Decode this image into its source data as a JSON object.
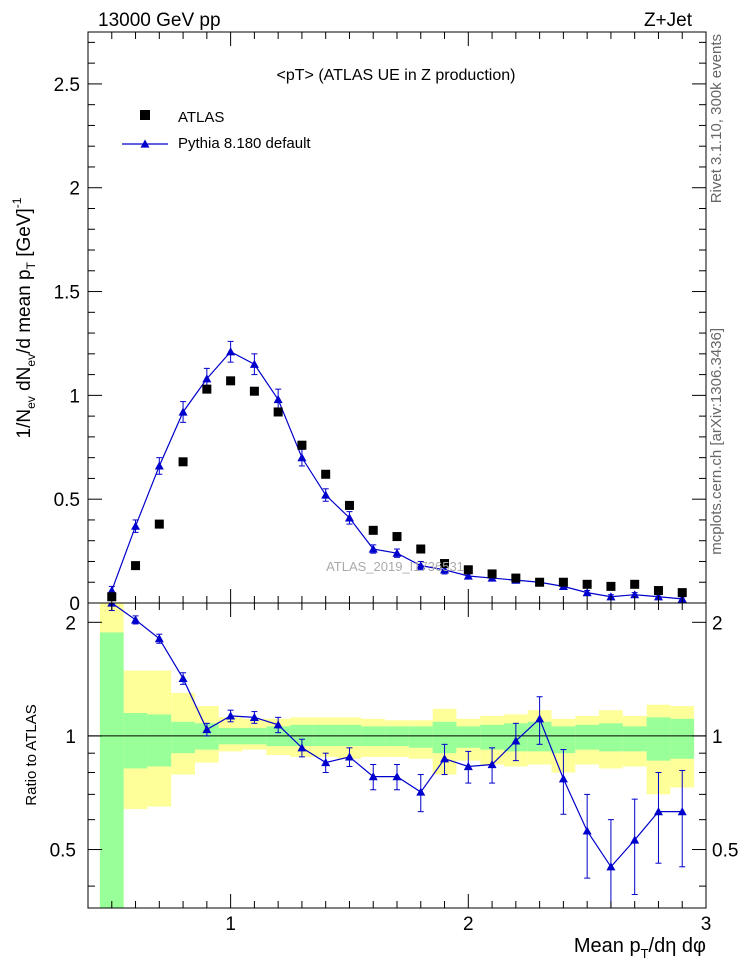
{
  "header": {
    "left": "13000 GeV pp",
    "right": "Z+Jet"
  },
  "plot_title": "<pT> (ATLAS UE in Z production)",
  "watermark": "ATLAS_2019_I1736531",
  "side_labels": {
    "top": "Rivet 3.1.10,  300k events",
    "bottom": "mcplots.cern.ch [arXiv:1306.3436]"
  },
  "chart_data": [
    {
      "type": "scatter",
      "name": "main",
      "ylabel": "1/N_ev dN_ev/d mean p_T [GeV]^-1",
      "xlim": [
        0.4,
        3.0
      ],
      "ylim": [
        0,
        2.75
      ],
      "yticks": [
        0,
        0.5,
        1,
        1.5,
        2,
        2.5
      ],
      "ytick_labels": [
        "0",
        "0.5",
        "1",
        "1.5",
        "2",
        "2.5"
      ],
      "x": [
        0.5,
        0.6,
        0.7,
        0.8,
        0.9,
        1.0,
        1.1,
        1.2,
        1.3,
        1.4,
        1.5,
        1.6,
        1.7,
        1.8,
        1.9,
        2.0,
        2.1,
        2.2,
        2.3,
        2.4,
        2.5,
        2.6,
        2.7,
        2.8,
        2.9
      ],
      "series": [
        {
          "name": "ATLAS",
          "marker": "square",
          "color": "#000000",
          "values": [
            0.03,
            0.18,
            0.38,
            0.68,
            1.03,
            1.07,
            1.02,
            0.92,
            0.76,
            0.62,
            0.47,
            0.35,
            0.32,
            0.26,
            0.19,
            0.16,
            0.14,
            0.12,
            0.1,
            0.1,
            0.09,
            0.08,
            0.09,
            0.06,
            0.05
          ]
        },
        {
          "name": "Pythia 8.180 default",
          "marker": "triangle",
          "color": "#0000cc",
          "values": [
            0.06,
            0.37,
            0.66,
            0.92,
            1.08,
            1.21,
            1.15,
            0.98,
            0.7,
            0.52,
            0.41,
            0.26,
            0.24,
            0.18,
            0.16,
            0.13,
            0.12,
            0.11,
            0.1,
            0.08,
            0.05,
            0.03,
            0.04,
            0.03,
            0.02
          ],
          "errors": [
            0.02,
            0.03,
            0.04,
            0.05,
            0.05,
            0.05,
            0.05,
            0.05,
            0.04,
            0.03,
            0.03,
            0.02,
            0.02,
            0.02,
            0.02,
            0.01,
            0.01,
            0.01,
            0.01,
            0.01,
            0.01,
            0.01,
            0.01,
            0.01,
            0.01
          ]
        }
      ],
      "legend": "top-left"
    },
    {
      "type": "scatter",
      "name": "ratio",
      "ylabel": "Ratio to ATLAS",
      "xlabel": "Mean p_T/dη dφ",
      "xlim": [
        0.4,
        3.0
      ],
      "ylim": [
        0.35,
        2.25
      ],
      "xticks": [
        1,
        2,
        3
      ],
      "xtick_labels": [
        "1",
        "2",
        "3"
      ],
      "yticks": [
        0.5,
        1,
        2
      ],
      "ytick_labels": [
        "0.5",
        "1",
        "2"
      ],
      "reference": 1,
      "bins": [
        [
          0.45,
          0.55
        ],
        [
          0.55,
          0.65
        ],
        [
          0.65,
          0.75
        ],
        [
          0.75,
          0.85
        ],
        [
          0.85,
          0.95
        ],
        [
          0.95,
          1.05
        ],
        [
          1.05,
          1.15
        ],
        [
          1.15,
          1.25
        ],
        [
          1.25,
          1.35
        ],
        [
          1.35,
          1.45
        ],
        [
          1.45,
          1.55
        ],
        [
          1.55,
          1.65
        ],
        [
          1.65,
          1.75
        ],
        [
          1.75,
          1.85
        ],
        [
          1.85,
          1.95
        ],
        [
          1.95,
          2.05
        ],
        [
          2.05,
          2.15
        ],
        [
          2.15,
          2.25
        ],
        [
          2.25,
          2.35
        ],
        [
          2.35,
          2.45
        ],
        [
          2.45,
          2.55
        ],
        [
          2.55,
          2.65
        ],
        [
          2.65,
          2.75
        ],
        [
          2.75,
          2.85
        ],
        [
          2.85,
          2.95
        ]
      ],
      "band_yellow": [
        [
          0.3,
          2.25
        ],
        [
          0.64,
          1.49
        ],
        [
          0.65,
          1.49
        ],
        [
          0.79,
          1.3
        ],
        [
          0.85,
          1.2
        ],
        [
          0.91,
          1.12
        ],
        [
          0.92,
          1.11
        ],
        [
          0.89,
          1.11
        ],
        [
          0.88,
          1.12
        ],
        [
          0.88,
          1.12
        ],
        [
          0.87,
          1.12
        ],
        [
          0.88,
          1.11
        ],
        [
          0.88,
          1.1
        ],
        [
          0.87,
          1.1
        ],
        [
          0.79,
          1.18
        ],
        [
          0.86,
          1.11
        ],
        [
          0.84,
          1.13
        ],
        [
          0.83,
          1.14
        ],
        [
          0.84,
          1.17
        ],
        [
          0.8,
          1.11
        ],
        [
          0.84,
          1.13
        ],
        [
          0.82,
          1.17
        ],
        [
          0.83,
          1.13
        ],
        [
          0.7,
          1.21
        ],
        [
          0.73,
          1.2
        ]
      ],
      "band_green": [
        [
          0.3,
          1.88
        ],
        [
          0.82,
          1.15
        ],
        [
          0.83,
          1.14
        ],
        [
          0.9,
          1.09
        ],
        [
          0.92,
          1.08
        ],
        [
          0.95,
          1.05
        ],
        [
          0.95,
          1.05
        ],
        [
          0.94,
          1.06
        ],
        [
          0.94,
          1.07
        ],
        [
          0.94,
          1.07
        ],
        [
          0.94,
          1.07
        ],
        [
          0.94,
          1.06
        ],
        [
          0.94,
          1.06
        ],
        [
          0.93,
          1.06
        ],
        [
          0.9,
          1.09
        ],
        [
          0.93,
          1.06
        ],
        [
          0.92,
          1.07
        ],
        [
          0.91,
          1.08
        ],
        [
          0.91,
          1.09
        ],
        [
          0.9,
          1.06
        ],
        [
          0.92,
          1.07
        ],
        [
          0.91,
          1.08
        ],
        [
          0.91,
          1.06
        ],
        [
          0.86,
          1.12
        ],
        [
          0.87,
          1.11
        ]
      ],
      "series": [
        {
          "name": "Pythia 8.180 default",
          "marker": "triangle",
          "color": "#0000cc",
          "values": [
            2.25,
            2.03,
            1.81,
            1.42,
            1.04,
            1.13,
            1.12,
            1.07,
            0.93,
            0.85,
            0.88,
            0.78,
            0.78,
            0.71,
            0.87,
            0.83,
            0.84,
            0.97,
            1.11,
            0.77,
            0.56,
            0.45,
            0.53,
            0.63,
            0.63
          ],
          "errors": [
            0.1,
            0.05,
            0.05,
            0.05,
            0.04,
            0.04,
            0.04,
            0.05,
            0.05,
            0.05,
            0.05,
            0.06,
            0.06,
            0.08,
            0.08,
            0.08,
            0.09,
            0.11,
            0.16,
            0.15,
            0.14,
            0.15,
            0.15,
            0.17,
            0.18
          ]
        }
      ]
    }
  ]
}
